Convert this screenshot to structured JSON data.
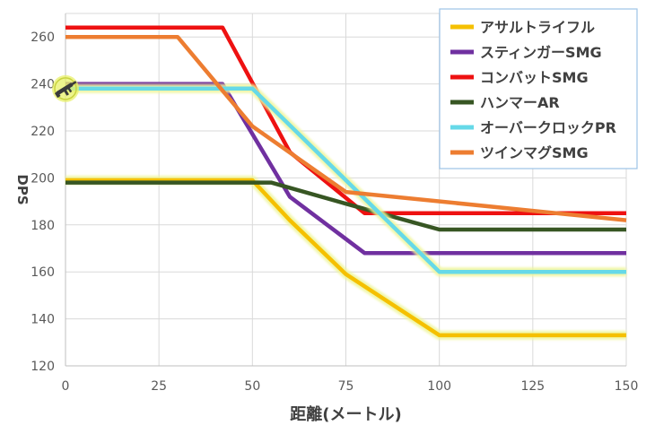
{
  "chart_data": {
    "type": "line",
    "xlabel": "距離(メートル)",
    "ylabel": "DPS",
    "xlim": [
      0,
      150
    ],
    "ylim": [
      120,
      270
    ],
    "xticks": [
      0,
      25,
      50,
      75,
      100,
      125,
      150
    ],
    "yticks": [
      120,
      140,
      160,
      180,
      200,
      220,
      240,
      260
    ],
    "grid": true,
    "legend_position": "top-right",
    "series": [
      {
        "name": "アサルトライフル",
        "color": "#F5C000",
        "glow": true,
        "points": [
          [
            0,
            199
          ],
          [
            50,
            199
          ],
          [
            60,
            182
          ],
          [
            75,
            159
          ],
          [
            100,
            133
          ],
          [
            150,
            133
          ]
        ]
      },
      {
        "name": "スティンガーSMG",
        "color": "#7030A0",
        "glow": false,
        "points": [
          [
            0,
            240
          ],
          [
            42,
            240
          ],
          [
            60,
            192
          ],
          [
            80,
            168
          ],
          [
            150,
            168
          ]
        ]
      },
      {
        "name": "コンバットSMG",
        "color": "#EE1111",
        "glow": false,
        "points": [
          [
            0,
            264
          ],
          [
            42,
            264
          ],
          [
            60,
            211
          ],
          [
            80,
            185
          ],
          [
            150,
            185
          ]
        ]
      },
      {
        "name": "ハンマーAR",
        "color": "#375623",
        "glow": false,
        "points": [
          [
            0,
            198
          ],
          [
            55,
            198
          ],
          [
            75,
            189
          ],
          [
            100,
            178
          ],
          [
            150,
            178
          ]
        ]
      },
      {
        "name": "オーバークロックPR",
        "color": "#66D9E8",
        "glow": true,
        "points": [
          [
            0,
            238
          ],
          [
            50,
            238
          ],
          [
            100,
            160
          ],
          [
            150,
            160
          ]
        ]
      },
      {
        "name": "ツインマグSMG",
        "color": "#ED7D31",
        "glow": false,
        "points": [
          [
            0,
            260
          ],
          [
            30,
            260
          ],
          [
            50,
            222
          ],
          [
            75,
            194
          ],
          [
            150,
            182
          ]
        ]
      }
    ],
    "marker": {
      "icon": "rifle-icon",
      "x": 0,
      "y": 238,
      "color": "#3A3A3A",
      "ring_color": "#E8F06A"
    }
  }
}
